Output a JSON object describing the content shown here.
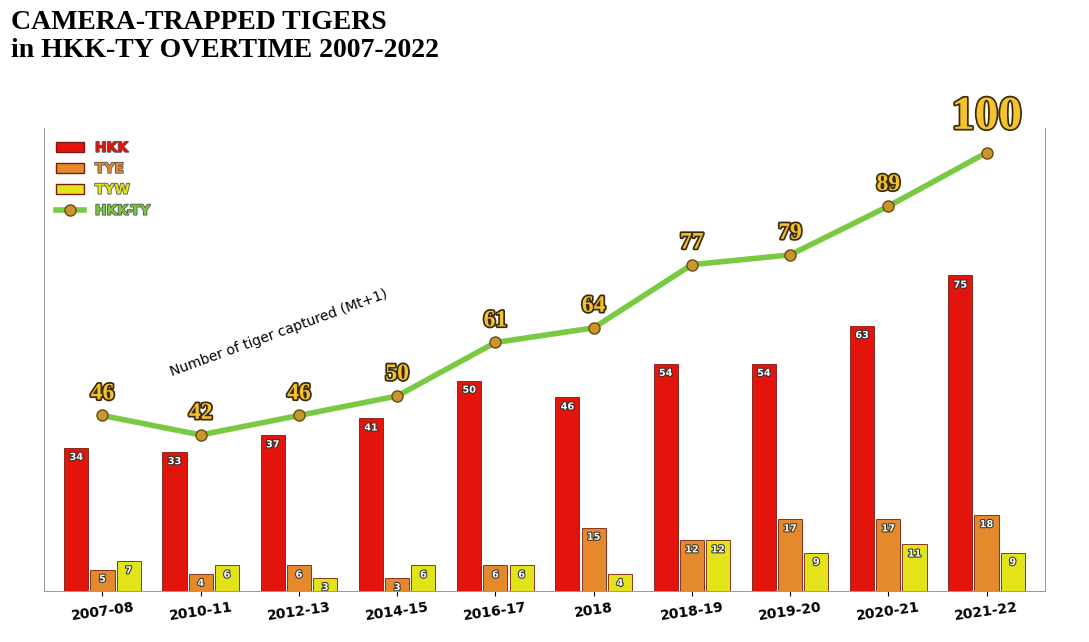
{
  "chart_data": {
    "type": "bar",
    "title": "CAMERA-TRAPPED TIGERS\nin HKK-TY OVERTIME 2007-2022",
    "annotation": "Number of tiger captured (Mt+1)",
    "categories": [
      "2007-08",
      "2010-11",
      "2012-13",
      "2014-15",
      "2016-17",
      "2018",
      "2018-19",
      "2019-20",
      "2020-21",
      "2021-22"
    ],
    "series": [
      {
        "name": "HKK",
        "color": "#e3140c",
        "values": [
          34,
          33,
          37,
          41,
          50,
          46,
          54,
          54,
          63,
          75
        ]
      },
      {
        "name": "TYE",
        "color": "#e58a2c",
        "values": [
          5,
          4,
          6,
          3,
          6,
          15,
          12,
          17,
          17,
          18
        ]
      },
      {
        "name": "TYW",
        "color": "#e3e31a",
        "values": [
          7,
          6,
          3,
          6,
          6,
          4,
          12,
          9,
          11,
          9
        ]
      },
      {
        "name": "HKK-TY",
        "type": "line",
        "axis": "y2",
        "color": "#7ac943",
        "marker": "o",
        "line_style": "solid",
        "values": [
          46,
          42,
          46,
          50,
          61,
          64,
          77,
          79,
          89,
          100
        ]
      }
    ],
    "ylim": [
      0,
      110
    ],
    "y2lim": [
      10,
      105
    ],
    "data_labels": true,
    "tick_labels": "x",
    "legend": "upper left",
    "grid": false
  }
}
